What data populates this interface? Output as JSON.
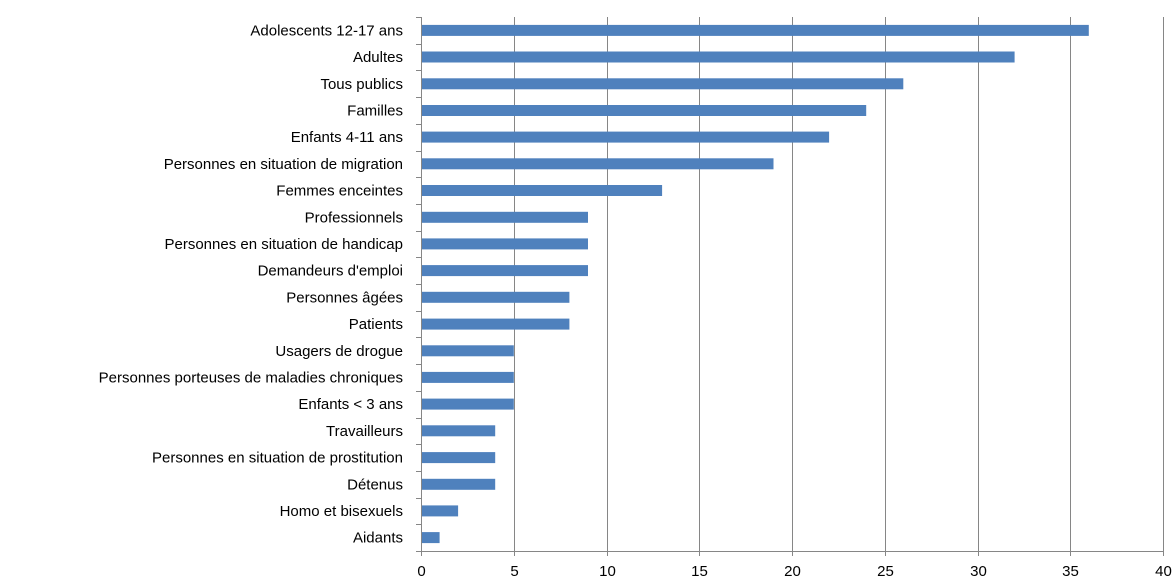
{
  "chart_data": {
    "type": "bar",
    "orientation": "horizontal",
    "title": "",
    "xlabel": "",
    "ylabel": "",
    "xlim": [
      0,
      40
    ],
    "x_ticks": [
      0,
      5,
      10,
      15,
      20,
      25,
      30,
      35,
      40
    ],
    "grid": "vertical major gridlines",
    "legend": "none",
    "bar_color": "#4F81BD",
    "categories": [
      "Adolescents 12-17 ans",
      "Adultes",
      "Tous publics",
      "Familles",
      "Enfants 4-11 ans",
      "Personnes en situation de migration",
      "Femmes enceintes",
      "Professionnels",
      "Personnes en situation de handicap",
      "Demandeurs d'emploi",
      "Personnes âgées",
      "Patients",
      "Usagers de drogue",
      "Personnes porteuses de maladies chroniques",
      "Enfants < 3 ans",
      "Travailleurs",
      "Personnes en situation de prostitution",
      "Détenus",
      "Homo et bisexuels",
      "Aidants"
    ],
    "values": [
      36,
      32,
      26,
      24,
      22,
      19,
      13,
      9,
      9,
      9,
      8,
      8,
      5,
      5,
      5,
      4,
      4,
      4,
      2,
      1
    ]
  }
}
